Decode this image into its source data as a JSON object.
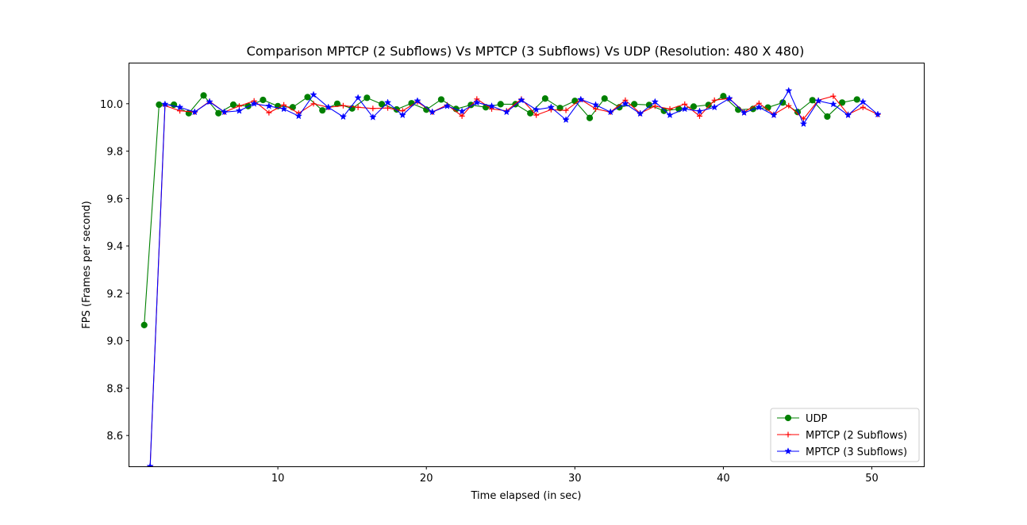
{
  "chart_data": {
    "type": "line",
    "title": "Comparison MPTCP (2 Subflows) Vs MPTCP (3 Subflows) Vs UDP (Resolution: 480 X 480)",
    "xlabel": "Time elapsed (in sec)",
    "ylabel": "FPS (Frames per second)",
    "xlim": [
      0,
      53.5
    ],
    "ylim": [
      8.47,
      10.17
    ],
    "xticks": [
      10,
      20,
      30,
      40,
      50
    ],
    "yticks": [
      8.6,
      8.8,
      9.0,
      9.2,
      9.4,
      9.6,
      9.8,
      10.0
    ],
    "grid": false,
    "legend_position": "lower-right",
    "series": [
      {
        "name": "UDP",
        "color": "#008000",
        "marker": "circle",
        "x": [
          1.0,
          2.0,
          3.0,
          4.0,
          5.0,
          6.0,
          7.0,
          8.0,
          9.0,
          10.0,
          11.0,
          12.0,
          13.0,
          14.0,
          15.0,
          16.0,
          17.0,
          18.0,
          19.0,
          20.0,
          21.0,
          22.0,
          23.0,
          24.0,
          25.0,
          26.0,
          27.0,
          28.0,
          29.0,
          30.0,
          31.0,
          32.0,
          33.0,
          34.0,
          35.0,
          36.0,
          37.0,
          38.0,
          39.0,
          40.0,
          41.0,
          42.0,
          43.0,
          44.0,
          45.0,
          46.0,
          47.0,
          48.0,
          49.0
        ],
        "y": [
          9.066,
          9.996,
          9.996,
          9.96,
          10.035,
          9.96,
          9.996,
          9.99,
          10.016,
          9.99,
          9.985,
          10.028,
          9.972,
          10.0,
          9.98,
          10.025,
          9.998,
          9.976,
          10.002,
          9.975,
          10.018,
          9.978,
          9.995,
          9.985,
          9.998,
          9.998,
          9.96,
          10.022,
          9.982,
          10.012,
          9.94,
          10.022,
          9.985,
          9.998,
          9.995,
          9.97,
          9.978,
          9.988,
          9.995,
          10.032,
          9.975,
          9.978,
          9.984,
          10.005,
          9.965,
          10.015,
          9.946,
          10.005,
          10.018
        ]
      },
      {
        "name": "MPTCP (2 Subflows)",
        "color": "#ff0000",
        "marker": "plus",
        "x": [
          1.4,
          2.4,
          3.4,
          4.4,
          5.4,
          6.4,
          7.4,
          8.4,
          9.4,
          10.4,
          11.4,
          12.4,
          13.4,
          14.4,
          15.4,
          16.4,
          17.4,
          18.4,
          19.4,
          20.4,
          21.4,
          22.4,
          23.4,
          24.4,
          25.4,
          26.4,
          27.4,
          28.4,
          29.4,
          30.4,
          31.4,
          32.4,
          33.4,
          34.4,
          35.4,
          36.4,
          37.4,
          38.4,
          39.4,
          40.4,
          41.4,
          42.4,
          43.4,
          44.4,
          45.4,
          46.4,
          47.4,
          48.4,
          49.4,
          50.4
        ],
        "y": [
          8.47,
          9.992,
          9.97,
          9.965,
          10.01,
          9.965,
          9.99,
          10.012,
          9.962,
          9.995,
          9.96,
          10.0,
          9.985,
          9.992,
          9.985,
          9.98,
          9.982,
          9.97,
          10.008,
          9.965,
          9.995,
          9.948,
          10.02,
          9.978,
          9.97,
          10.02,
          9.952,
          9.975,
          9.972,
          10.018,
          9.978,
          9.965,
          10.015,
          9.96,
          9.99,
          9.978,
          9.998,
          9.948,
          10.015,
          10.022,
          9.965,
          10.002,
          9.955,
          9.992,
          9.936,
          10.015,
          10.032,
          9.955,
          9.985,
          9.955
        ]
      },
      {
        "name": "MPTCP (3 Subflows)",
        "color": "#0000ff",
        "marker": "star",
        "x": [
          1.4,
          2.4,
          3.4,
          4.4,
          5.4,
          6.4,
          7.4,
          8.4,
          9.4,
          10.4,
          11.4,
          12.4,
          13.4,
          14.4,
          15.4,
          16.4,
          17.4,
          18.4,
          19.4,
          20.4,
          21.4,
          22.4,
          23.4,
          24.4,
          25.4,
          26.4,
          27.4,
          28.4,
          29.4,
          30.4,
          31.4,
          32.4,
          33.4,
          34.4,
          35.4,
          36.4,
          37.4,
          38.4,
          39.4,
          40.4,
          41.4,
          42.4,
          43.4,
          44.4,
          45.4,
          46.4,
          47.4,
          48.4,
          49.4,
          50.4
        ],
        "y": [
          8.47,
          9.998,
          9.985,
          9.965,
          10.008,
          9.965,
          9.97,
          10.0,
          9.99,
          9.978,
          9.948,
          10.038,
          9.985,
          9.945,
          10.025,
          9.943,
          10.005,
          9.952,
          10.012,
          9.965,
          9.99,
          9.968,
          10.005,
          9.99,
          9.965,
          10.015,
          9.975,
          9.985,
          9.932,
          10.018,
          9.995,
          9.965,
          10.0,
          9.958,
          10.008,
          9.952,
          9.978,
          9.968,
          9.985,
          10.022,
          9.962,
          9.985,
          9.952,
          10.055,
          9.915,
          10.012,
          9.998,
          9.952,
          10.008,
          9.955
        ]
      }
    ]
  }
}
